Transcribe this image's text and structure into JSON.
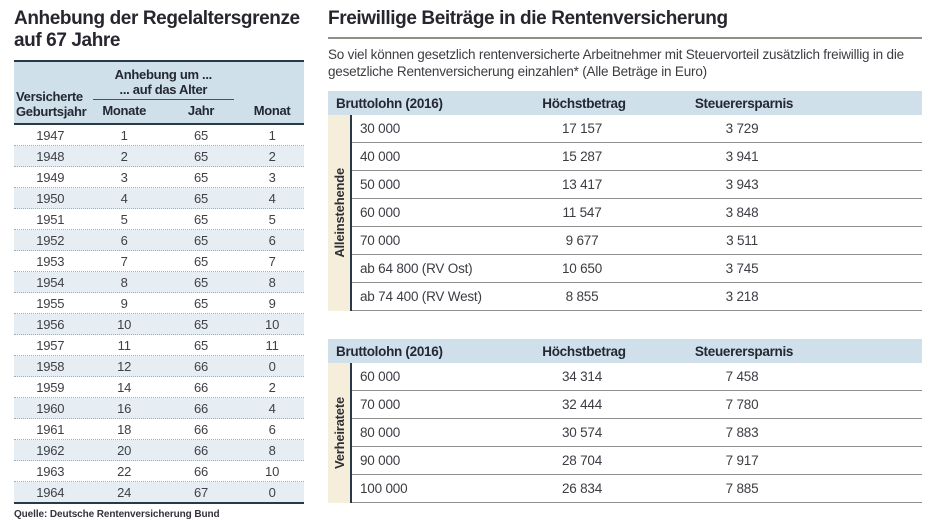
{
  "left_panel": {
    "title_line1": "Anhebung der Regelaltersgrenze",
    "title_line2": "auf 67 Jahre",
    "table": {
      "col1_header_line1": "Versicherte",
      "col1_header_line2": "Geburtsjahr",
      "span_header_line1": "Anhebung um ...",
      "span_header_line2": "... auf das Alter",
      "sub_headers": [
        "Monate",
        "Jahr",
        "Monat"
      ],
      "rows": [
        [
          "1947",
          "1",
          "65",
          "1"
        ],
        [
          "1948",
          "2",
          "65",
          "2"
        ],
        [
          "1949",
          "3",
          "65",
          "3"
        ],
        [
          "1950",
          "4",
          "65",
          "4"
        ],
        [
          "1951",
          "5",
          "65",
          "5"
        ],
        [
          "1952",
          "6",
          "65",
          "6"
        ],
        [
          "1953",
          "7",
          "65",
          "7"
        ],
        [
          "1954",
          "8",
          "65",
          "8"
        ],
        [
          "1955",
          "9",
          "65",
          "9"
        ],
        [
          "1956",
          "10",
          "65",
          "10"
        ],
        [
          "1957",
          "11",
          "65",
          "11"
        ],
        [
          "1958",
          "12",
          "66",
          "0"
        ],
        [
          "1959",
          "14",
          "66",
          "2"
        ],
        [
          "1960",
          "16",
          "66",
          "4"
        ],
        [
          "1961",
          "18",
          "66",
          "6"
        ],
        [
          "1962",
          "20",
          "66",
          "8"
        ],
        [
          "1963",
          "22",
          "66",
          "10"
        ],
        [
          "1964",
          "24",
          "67",
          "0"
        ]
      ]
    },
    "source": "Quelle: Deutsche Rentenversicherung Bund"
  },
  "right_panel": {
    "title": "Freiwillige Beiträge in die Rentenversicherung",
    "subtitle": "So viel können gesetzlich rentenversicherte Arbeitnehmer mit Steuervorteil zusätzlich freiwillig in die gesetzliche Rentenversicherung einzahlen* (Alle Beträge in Euro)",
    "tables": [
      {
        "group_label": "Alleinstehende",
        "headers": [
          "Bruttolohn (2016)",
          "Höchstbetrag",
          "Steuerersparnis"
        ],
        "rows": [
          [
            "30 000",
            "17 157",
            "3 729"
          ],
          [
            "40 000",
            "15 287",
            "3 941"
          ],
          [
            "50 000",
            "13 417",
            "3 943"
          ],
          [
            "60 000",
            "11 547",
            "3 848"
          ],
          [
            "70 000",
            "9 677",
            "3 511"
          ],
          [
            "ab 64 800 (RV Ost)",
            "10 650",
            "3 745"
          ],
          [
            "ab 74 400 (RV West)",
            "8 855",
            "3 218"
          ]
        ]
      },
      {
        "group_label": "Verheiratete",
        "headers": [
          "Bruttolohn (2016)",
          "Höchstbetrag",
          "Steuerersparnis"
        ],
        "rows": [
          [
            "60 000",
            "34 314",
            "7 458"
          ],
          [
            "70 000",
            "32 444",
            "7 780"
          ],
          [
            "80 000",
            "30 574",
            "7 883"
          ],
          [
            "90 000",
            "28 704",
            "7 917"
          ],
          [
            "100 000",
            "26 834",
            "7 885"
          ]
        ]
      }
    ]
  },
  "colors": {
    "header_blue": "#cfe0ea",
    "row_stripe_blue": "#e7eef3",
    "group_strip_beige": "#f4eeda",
    "dark_line": "#28394a",
    "gray_line": "#8f8f8f",
    "title_text": "#26262e",
    "body_text": "#3f3f47"
  }
}
